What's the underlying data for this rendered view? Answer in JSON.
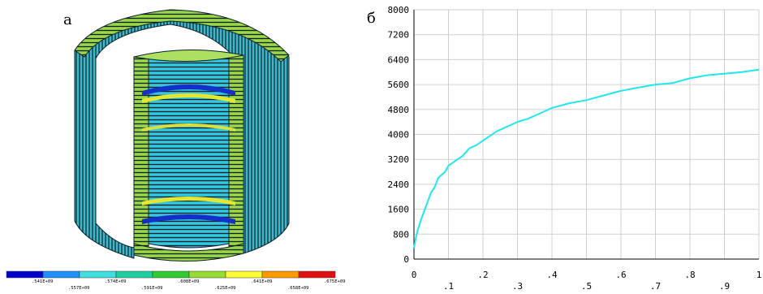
{
  "panel_a_label": "а",
  "panel_b_label": "б",
  "fea_legend": {
    "colors": [
      "#0000cc",
      "#1e90ff",
      "#40e0e0",
      "#20d0a0",
      "#33cc33",
      "#99dd33",
      "#ffff33",
      "#ff9900",
      "#e01010"
    ],
    "top_labels": [
      ".541E+09",
      ".574E+09",
      ".608E+09",
      ".641E+09",
      ".675E+09"
    ],
    "bottom_labels": [
      ".557E+09",
      ".591E+09",
      ".625E+09",
      ".658E+09",
      ".692E+09"
    ]
  },
  "chart_data": {
    "type": "line",
    "title": "",
    "xlabel": "",
    "ylabel": "",
    "xlim": [
      0,
      1
    ],
    "ylim": [
      0,
      8000
    ],
    "grid": true,
    "line_color": "#22e6ee",
    "y_ticks": [
      "0",
      "800",
      "1600",
      "2400",
      "3200",
      "4000",
      "4800",
      "5600",
      "6400",
      "7200",
      "8000"
    ],
    "x_ticks_top": [
      "0",
      ".2",
      ".4",
      ".6",
      ".8",
      "1"
    ],
    "x_ticks_bottom": [
      ".1",
      ".3",
      ".5",
      ".7",
      ".9"
    ],
    "series": [
      {
        "x": [
          0,
          0.005,
          0.01,
          0.02,
          0.03,
          0.04,
          0.05,
          0.06,
          0.07,
          0.08,
          0.09,
          0.1,
          0.12,
          0.14,
          0.16,
          0.18,
          0.2,
          0.22,
          0.24,
          0.26,
          0.28,
          0.3,
          0.33,
          0.36,
          0.4,
          0.45,
          0.5,
          0.55,
          0.6,
          0.65,
          0.7,
          0.75,
          0.8,
          0.85,
          0.9,
          0.95,
          1.0
        ],
        "y": [
          350,
          650,
          900,
          1250,
          1550,
          1850,
          2150,
          2300,
          2600,
          2700,
          2800,
          3000,
          3150,
          3300,
          3550,
          3650,
          3800,
          3950,
          4100,
          4200,
          4300,
          4400,
          4500,
          4650,
          4850,
          5000,
          5100,
          5250,
          5400,
          5500,
          5600,
          5650,
          5800,
          5900,
          5950,
          6000,
          6080
        ]
      }
    ]
  }
}
